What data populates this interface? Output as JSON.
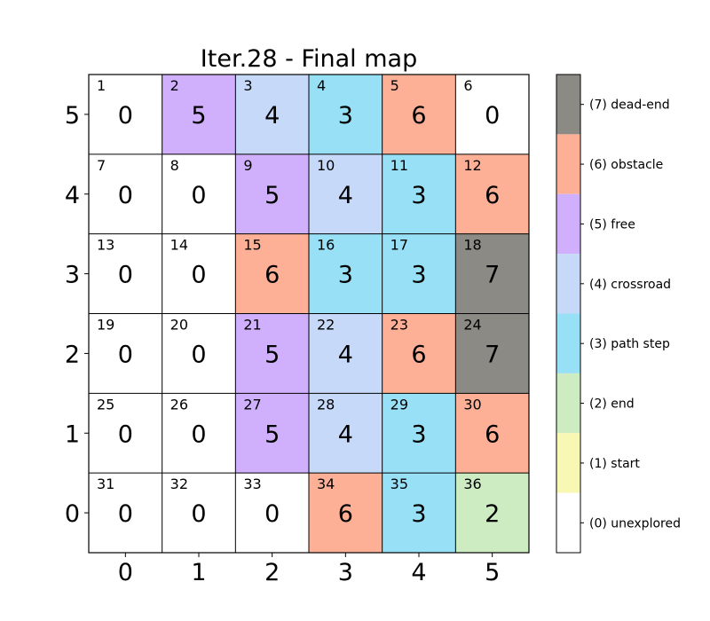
{
  "chart_data": {
    "type": "heatmap",
    "title": "Iter.28 - Final map",
    "x_ticks": [
      "0",
      "1",
      "2",
      "3",
      "4",
      "5"
    ],
    "y_ticks": [
      "5",
      "4",
      "3",
      "2",
      "1",
      "0"
    ],
    "grid": [
      [
        0,
        5,
        4,
        3,
        6,
        0
      ],
      [
        0,
        0,
        5,
        4,
        3,
        6
      ],
      [
        0,
        0,
        6,
        3,
        3,
        7
      ],
      [
        0,
        0,
        5,
        4,
        6,
        7
      ],
      [
        0,
        0,
        5,
        4,
        3,
        6
      ],
      [
        0,
        0,
        0,
        6,
        3,
        2
      ]
    ],
    "cell_numbers": [
      [
        "1",
        "2",
        "3",
        "4",
        "5",
        "6"
      ],
      [
        "7",
        "8",
        "9",
        "10",
        "11",
        "12"
      ],
      [
        "13",
        "14",
        "15",
        "16",
        "17",
        "18"
      ],
      [
        "19",
        "20",
        "21",
        "22",
        "23",
        "24"
      ],
      [
        "25",
        "26",
        "27",
        "28",
        "29",
        "30"
      ],
      [
        "31",
        "32",
        "33",
        "34",
        "35",
        "36"
      ]
    ],
    "legend": {
      "placement": "right",
      "entries": [
        {
          "value": 7,
          "label": "(7) dead-end",
          "color": "#8b8a84"
        },
        {
          "value": 6,
          "label": "(6) obstacle",
          "color": "#fdb095"
        },
        {
          "value": 5,
          "label": "(5) free",
          "color": "#d0b0fc"
        },
        {
          "value": 4,
          "label": "(4) crossroad",
          "color": "#c6d9f8"
        },
        {
          "value": 3,
          "label": "(3) path step",
          "color": "#98e0f6"
        },
        {
          "value": 2,
          "label": "(2) end",
          "color": "#cdecc1"
        },
        {
          "value": 1,
          "label": "(1) start",
          "color": "#f8f7b3"
        },
        {
          "value": 0,
          "label": "(0) unexplored",
          "color": "#ffffff"
        }
      ]
    }
  }
}
